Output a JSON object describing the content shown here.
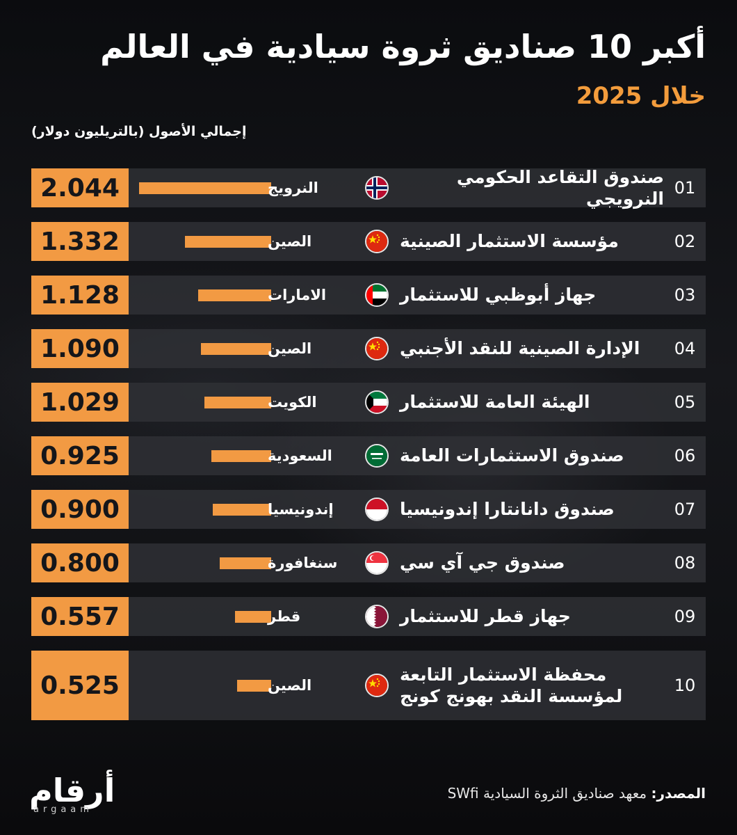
{
  "header": {
    "title": "أكبر 10 صناديق ثروة سيادية في العالم",
    "subtitle": "خلال 2025",
    "axis_label": "إجمالي الأصول (بالتريليون دولار)"
  },
  "chart_data": {
    "type": "bar",
    "title": "أكبر 10 صناديق ثروة سيادية في العالم",
    "subtitle": "خلال 2025",
    "ylabel": "إجمالي الأصول (بالتريليون دولار)",
    "grid": false,
    "bar_color": "#f29a43",
    "rows": [
      {
        "rank": "01",
        "fund": [
          "صندوق التقاعد الحكومي النرويجي"
        ],
        "country": "النرويج",
        "flag": "norway-flag",
        "value": 2.044,
        "value_label": "2.044"
      },
      {
        "rank": "02",
        "fund": [
          "مؤسسة الاستثمار الصينية"
        ],
        "country": "الصين",
        "flag": "china-flag",
        "value": 1.332,
        "value_label": "1.332"
      },
      {
        "rank": "03",
        "fund": [
          "جهاز أبوظبي للاستثمار"
        ],
        "country": "الامارات",
        "flag": "uae-flag",
        "value": 1.128,
        "value_label": "1.128"
      },
      {
        "rank": "04",
        "fund": [
          "الإدارة الصينية للنقد الأجنبي"
        ],
        "country": "الصين",
        "flag": "china-flag",
        "value": 1.09,
        "value_label": "1.090"
      },
      {
        "rank": "05",
        "fund": [
          "الهيئة العامة للاستثمار"
        ],
        "country": "الكويت",
        "flag": "kuwait-flag",
        "value": 1.029,
        "value_label": "1.029"
      },
      {
        "rank": "06",
        "fund": [
          "صندوق الاستثمارات العامة"
        ],
        "country": "السعودية",
        "flag": "saudi-flag",
        "value": 0.925,
        "value_label": "0.925"
      },
      {
        "rank": "07",
        "fund": [
          "صندوق دانانتارا إندونيسيا"
        ],
        "country": "إندونيسيا",
        "flag": "indonesia-flag",
        "value": 0.9,
        "value_label": "0.900"
      },
      {
        "rank": "08",
        "fund": [
          "صندوق جي آي سي"
        ],
        "country": "سنغافورة",
        "flag": "singapore-flag",
        "value": 0.8,
        "value_label": "0.800"
      },
      {
        "rank": "09",
        "fund": [
          "جهاز قطر للاستثمار"
        ],
        "country": "قطر",
        "flag": "qatar-flag",
        "value": 0.557,
        "value_label": "0.557"
      },
      {
        "rank": "10",
        "fund": [
          "محفظة الاستثمار التابعة",
          "لمؤسسة النقد بهونج كونج"
        ],
        "country": "الصين",
        "flag": "china-flag",
        "value": 0.525,
        "value_label": "0.525"
      }
    ]
  },
  "footer": {
    "source_label": "المصدر:",
    "source_text": "معهد صناديق الثروة السيادية SWfi",
    "logo_ar": "أرقام",
    "logo_en": "argaam"
  }
}
